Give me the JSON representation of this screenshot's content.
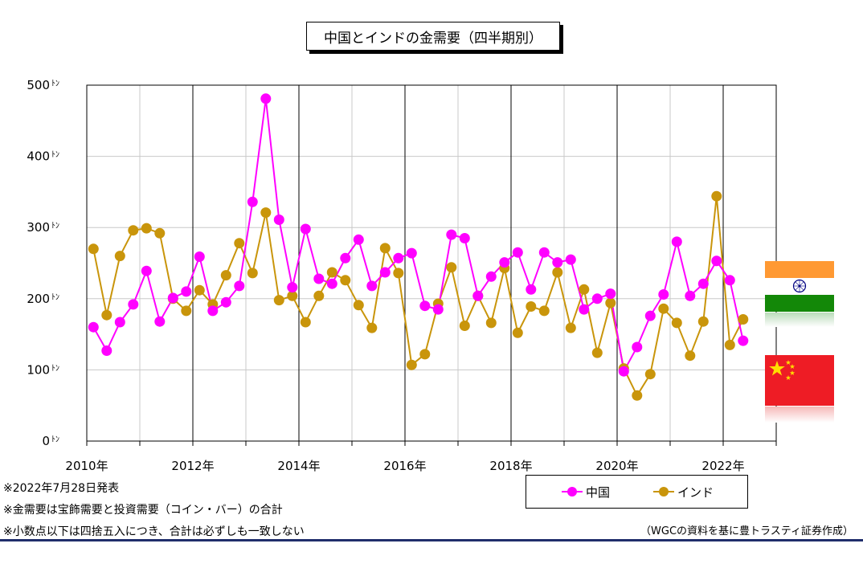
{
  "title": "中国とインドの金需要（四半期別）",
  "notes": [
    "※2022年7月28日発表",
    "※金需要は宝飾需要と投資需要（コイン・バー）の合計",
    "※小数点以下は四捨五入につき、合計は必ずしも一致しない"
  ],
  "credit": "（WGCの資料を基に豊トラスティ証券作成）",
  "flags": [
    {
      "name": "india-flag",
      "country": "インド"
    },
    {
      "name": "china-flag",
      "country": "中国"
    }
  ],
  "colors": {
    "china": "#ff00ff",
    "india": "#c9950b",
    "grid": "#c8c8c8",
    "rule": "#1f2d6b"
  },
  "chart_data": {
    "type": "line",
    "title": "中国とインドの金需要（四半期別）",
    "xlabel": "",
    "ylabel": "",
    "y_unit": "ﾄﾝ",
    "ylim": [
      0,
      500
    ],
    "yticks": [
      0,
      100,
      200,
      300,
      400,
      500
    ],
    "xlim": [
      2010.0,
      2023.0
    ],
    "xticks": [
      2010,
      2012,
      2014,
      2016,
      2018,
      2020,
      2022
    ],
    "xtick_labels": [
      "2010年",
      "2012年",
      "2014年",
      "2016年",
      "2018年",
      "2020年",
      "2022年"
    ],
    "grid": true,
    "legend_position": "bottom-right",
    "x": [
      2010.125,
      2010.375,
      2010.625,
      2010.875,
      2011.125,
      2011.375,
      2011.625,
      2011.875,
      2012.125,
      2012.375,
      2012.625,
      2012.875,
      2013.125,
      2013.375,
      2013.625,
      2013.875,
      2014.125,
      2014.375,
      2014.625,
      2014.875,
      2015.125,
      2015.375,
      2015.625,
      2015.875,
      2016.125,
      2016.375,
      2016.625,
      2016.875,
      2017.125,
      2017.375,
      2017.625,
      2017.875,
      2018.125,
      2018.375,
      2018.625,
      2018.875,
      2019.125,
      2019.375,
      2019.625,
      2019.875,
      2020.125,
      2020.375,
      2020.625,
      2020.875,
      2021.125,
      2021.375,
      2021.625,
      2021.875,
      2022.125,
      2022.375
    ],
    "series": [
      {
        "name": "中国",
        "color": "#ff00ff",
        "values": [
          160,
          127,
          167,
          192,
          239,
          168,
          201,
          210,
          259,
          183,
          195,
          218,
          336,
          481,
          311,
          216,
          298,
          228,
          221,
          257,
          283,
          218,
          237,
          257,
          264,
          190,
          185,
          290,
          285,
          204,
          231,
          251,
          265,
          213,
          265,
          251,
          255,
          185,
          200,
          207,
          98,
          132,
          176,
          206,
          280,
          204,
          221,
          253,
          226,
          141
        ]
      },
      {
        "name": "インド",
        "color": "#c9950b",
        "values": [
          270,
          177,
          260,
          296,
          299,
          292,
          200,
          183,
          212,
          192,
          233,
          278,
          236,
          321,
          198,
          204,
          167,
          204,
          237,
          226,
          191,
          159,
          271,
          236,
          107,
          122,
          193,
          244,
          162,
          204,
          166,
          243,
          152,
          189,
          183,
          237,
          159,
          213,
          124,
          194,
          102,
          64,
          94,
          186,
          166,
          120,
          168,
          344,
          135,
          171
        ]
      }
    ]
  }
}
